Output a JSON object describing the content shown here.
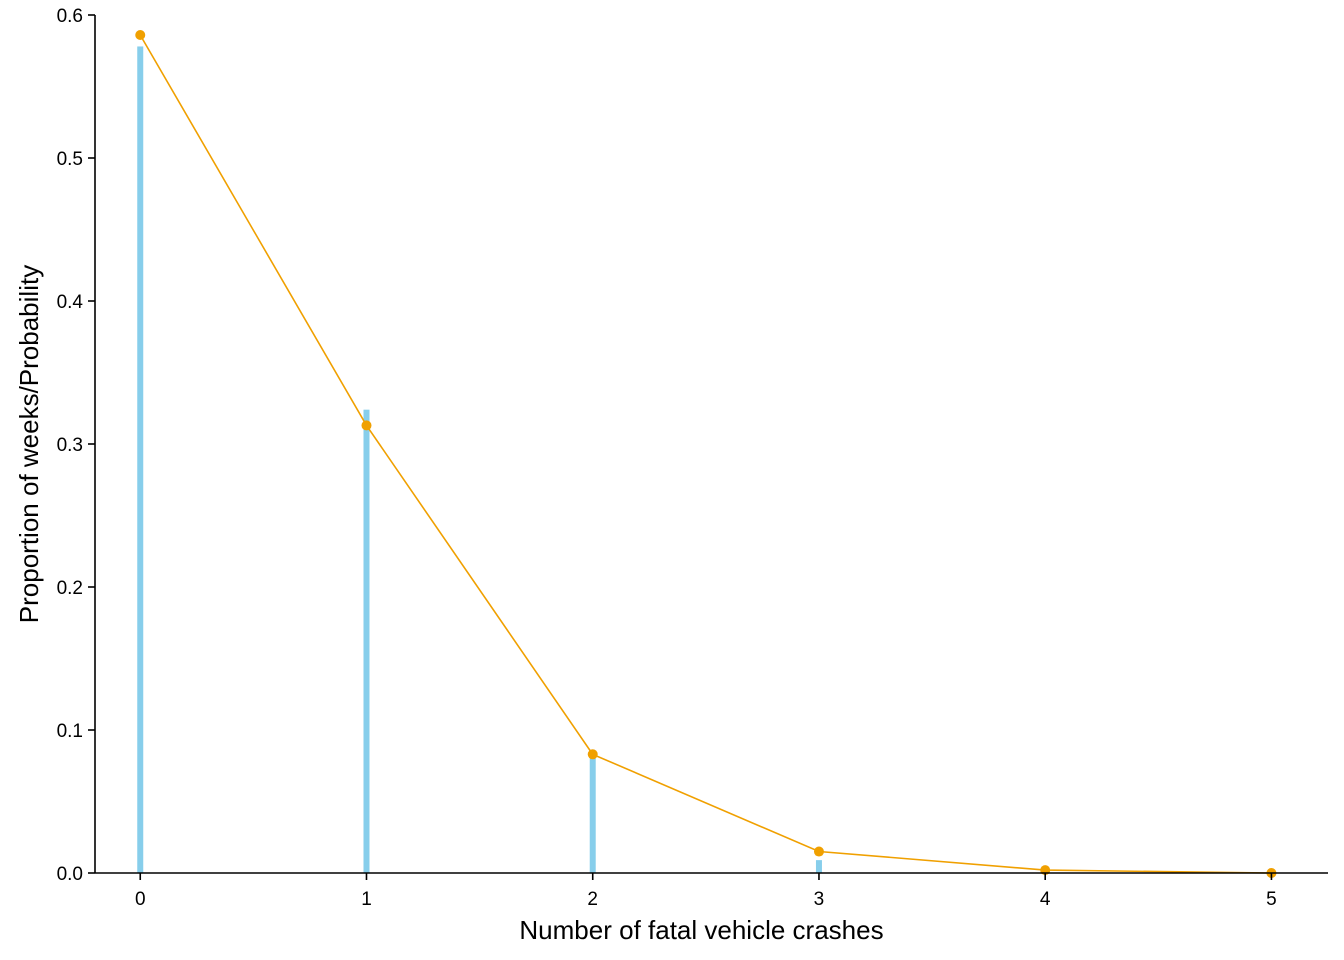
{
  "chart_data": {
    "type": "bar",
    "title": "",
    "xlabel": "Number of fatal vehicle crashes",
    "ylabel": "Proportion of weeks/Probability",
    "x": [
      0,
      1,
      2,
      3,
      4,
      5
    ],
    "xlim": [
      -0.2,
      5.25
    ],
    "ylim": [
      0,
      0.6
    ],
    "xticks": [
      "0",
      "1",
      "2",
      "3",
      "4",
      "5"
    ],
    "yticks": [
      "0.0",
      "0.1",
      "0.2",
      "0.3",
      "0.4",
      "0.5",
      "0.6"
    ],
    "grid": false,
    "legend": "none",
    "series": [
      {
        "type": "bar",
        "color": "#87CEEB",
        "values": [
          0.578,
          0.324,
          0.082,
          0.009,
          0.0,
          0.0
        ]
      },
      {
        "type": "line",
        "color": "#F0A000",
        "values": [
          0.586,
          0.313,
          0.083,
          0.015,
          0.002,
          0.0
        ]
      }
    ]
  }
}
